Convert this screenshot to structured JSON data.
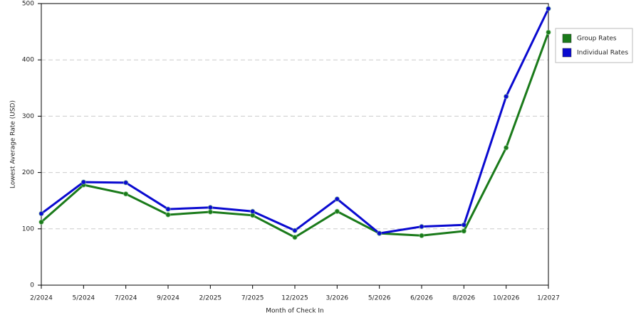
{
  "chart_data": {
    "type": "line",
    "x_label": "Month of Check In",
    "y_label": "Lowest Average Rate (USD)",
    "categories": [
      "2/2024",
      "5/2024",
      "7/2024",
      "9/2024",
      "2/2025",
      "7/2025",
      "12/2025",
      "3/2026",
      "5/2026",
      "6/2026",
      "8/2026",
      "10/2026",
      "1/2027"
    ],
    "series": [
      {
        "name": "Group Rates",
        "color": "#1a7a1a",
        "values": [
          112,
          178,
          162,
          125,
          130,
          124,
          85,
          131,
          92,
          88,
          96,
          244,
          449
        ]
      },
      {
        "name": "Individual Rates",
        "color": "#0a0ad0",
        "values": [
          127,
          183,
          182,
          135,
          138,
          131,
          97,
          153,
          92,
          104,
          107,
          335,
          491
        ]
      }
    ],
    "ylim": [
      0,
      500
    ],
    "yticks": [
      0,
      100,
      200,
      300,
      400,
      500
    ],
    "grid": true,
    "legend": "right"
  }
}
